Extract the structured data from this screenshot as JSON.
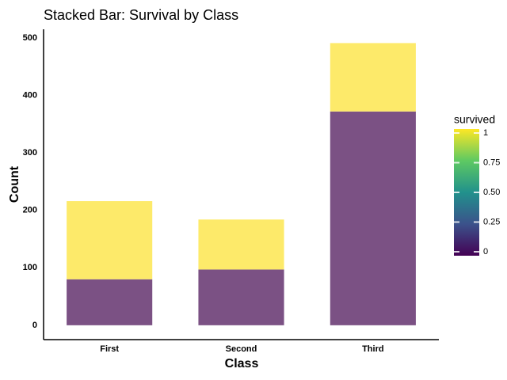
{
  "chart_data": {
    "type": "bar",
    "stacked": true,
    "title": "Stacked Bar: Survival by Class",
    "xlabel": "Class",
    "ylabel": "Count",
    "categories": [
      "First",
      "Second",
      "Third"
    ],
    "series": [
      {
        "values": [
          80,
          97,
          372
        ],
        "color": "#7b5184"
      },
      {
        "values": [
          136,
          87,
          119
        ],
        "color": "#fdea6a"
      }
    ],
    "ylim": [
      -25,
      515
    ],
    "yticks": [
      0,
      100,
      200,
      300,
      400,
      500
    ],
    "grid": false,
    "legend": {
      "title": "survived",
      "position": "right",
      "colormap": "viridis",
      "ticks": [
        "0",
        "0.25",
        "0.50",
        "0.75",
        "1"
      ]
    }
  }
}
